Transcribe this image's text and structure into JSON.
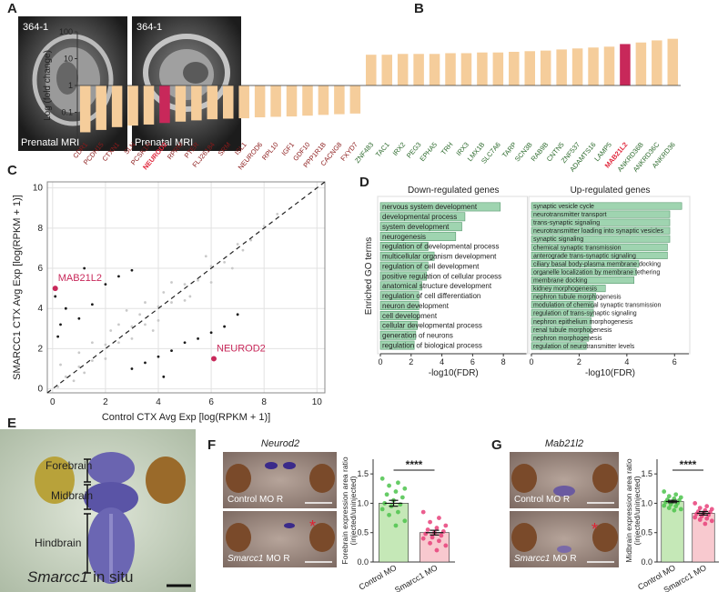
{
  "panel_labels": [
    "A",
    "B",
    "C",
    "D",
    "E",
    "F",
    "G"
  ],
  "panel_a": {
    "images": [
      {
        "tag": "364-1",
        "caption": "Prenatal MRI"
      },
      {
        "tag": "364-1",
        "caption": "Prenatal MRI"
      }
    ]
  },
  "panel_e": {
    "regions": [
      "Forebrain",
      "Midbrain",
      "Hindbrain"
    ],
    "gene": "Smarcc1",
    "caption": "in situ"
  },
  "panel_f": {
    "gene": "Neurod2",
    "control_label": "Control MO R",
    "knockdown_gene": "Smarcc1",
    "knockdown_label": "MO R",
    "marker": "*"
  },
  "panel_g": {
    "gene": "Mab21l2",
    "control_label": "Control MO R",
    "knockdown_gene": "Smarcc1",
    "knockdown_label": "MO R",
    "marker": "*"
  },
  "chart_data": [
    {
      "type": "bar",
      "ylabel": "Log (fold change)",
      "log_scale": true,
      "ylim": [
        0.01,
        100
      ],
      "yticks": [
        0.1,
        1,
        10,
        100
      ],
      "categories": [
        "CDR1",
        "PCDH15",
        "CTXN1",
        "SLN",
        "PCSK1N",
        "NEUROD2",
        "RPRM",
        "PTER",
        "FLJ26184",
        "SRM",
        "ISL1",
        "NEUROD6",
        "RPL10",
        "IGF1",
        "GDF10",
        "PPP1R1B",
        "CACNG8",
        "FXYD7",
        "ZNF483",
        "TAC1",
        "IRX2",
        "PEG3",
        "EPHA5",
        "TRH",
        "IRX3",
        "LMX1B",
        "SLC7A6",
        "TARP",
        "SCN3B",
        "RAB9B",
        "CNTN5",
        "ZNF537",
        "ADAMTS16",
        "LAMP5",
        "MAB21L2",
        "ANKRD36B",
        "ANKRD36C",
        "ANKRD36"
      ],
      "values": [
        0.018,
        0.022,
        0.028,
        0.032,
        0.035,
        0.04,
        0.045,
        0.05,
        0.055,
        0.058,
        0.06,
        0.065,
        0.068,
        0.07,
        0.075,
        0.08,
        0.085,
        0.09,
        14,
        14,
        15,
        15,
        15,
        16,
        16,
        17,
        17,
        18,
        19,
        20,
        22,
        24,
        26,
        28,
        35,
        40,
        48,
        55
      ],
      "color": "#f5cd9b",
      "highlight": [
        "NEUROD2",
        "MAB21L2"
      ],
      "highlight_color": "#c8285a",
      "down_label_color": "#8b1a1a",
      "up_label_color": "#2e6b2e",
      "highlight_label_color": "#e0263b"
    },
    {
      "type": "scatter",
      "xlabel": "Control CTX Avg Exp [log(RPKM + 1)]",
      "ylabel": "SMARCC1 CTX Avg Exp [log(RPKM + 1)]",
      "xlim": [
        -0.2,
        10.3
      ],
      "ylim": [
        -0.2,
        10.3
      ],
      "xticks": [
        0,
        2,
        4,
        6,
        8,
        10
      ],
      "yticks": [
        0,
        2,
        4,
        6,
        8,
        10
      ],
      "grid": true,
      "series": [
        {
          "color": "#c9c9c9",
          "x": [
            0.5,
            1,
            1.5,
            2,
            2.5,
            3,
            3.5,
            4,
            4.5,
            5,
            5.5,
            6,
            6.5,
            7,
            7.5,
            8,
            1,
            2,
            3,
            4,
            5,
            6,
            1.5,
            2.5,
            3.5,
            4.5,
            0.3,
            0.8,
            2.8,
            3.8,
            5.8,
            6.8,
            2.2,
            4.2,
            5.2,
            7.2,
            0.2,
            8.5,
            3.3,
            1.2
          ],
          "values": [
            0.6,
            1.1,
            1.4,
            2.2,
            2.3,
            3.1,
            3.2,
            4.1,
            4.3,
            5.2,
            5.4,
            6.1,
            6.3,
            7.2,
            7.4,
            8.1,
            1.8,
            1.5,
            2.5,
            3.4,
            4.4,
            5.3,
            2.3,
            3.2,
            4.3,
            5.3,
            1.2,
            0.4,
            3.9,
            2.9,
            6.6,
            6,
            2.9,
            4.8,
            4.6,
            6.9,
            0.1,
            8.7,
            3.7,
            0.8
          ]
        },
        {
          "color": "#1a1a1a",
          "x": [
            0.3,
            0.5,
            1,
            1.5,
            2,
            0.2,
            2.5,
            3,
            1.2,
            3,
            3.5,
            4,
            4.5,
            5,
            5.5,
            6,
            4.2,
            6.5,
            7,
            0.1
          ],
          "values": [
            3.2,
            4,
            3.5,
            4.2,
            5.2,
            2.6,
            5.6,
            5.9,
            6,
            1,
            1.3,
            1.6,
            1.9,
            2.3,
            2.5,
            2.8,
            0.6,
            3.1,
            3.7,
            4.6
          ]
        }
      ],
      "annotations": [
        {
          "text": "MAB21L2",
          "x": 0.1,
          "y": 5.0
        },
        {
          "text": "NEUROD2",
          "x": 6.1,
          "y": 1.5
        }
      ],
      "annotation_color": "#c8285a"
    },
    {
      "type": "hbar",
      "title": "Down-regulated genes",
      "xlabel": "-log10(FDR)",
      "ylabel": "Enriched GO terms",
      "xlim": [
        0,
        9.5
      ],
      "xticks": [
        0,
        2,
        4,
        6,
        8
      ],
      "color": "#9fd4b0",
      "categories": [
        "nervous system development",
        "developmental process",
        "system development",
        "neurogenesis",
        "regulation of developmental process",
        "multicellular organism development",
        "regulation of cell development",
        "positive regulation of cellular process",
        "anatomical structure development",
        "regulation of cell differentiation",
        "neuron development",
        "cell development",
        "cellular developmental process",
        "generation of neurons",
        "regulation of biological process"
      ],
      "values": [
        7.8,
        5.5,
        5.3,
        4.9,
        3.1,
        3.5,
        3.1,
        3.0,
        2.7,
        2.5,
        2.5,
        2.5,
        2.4,
        2.3,
        2.2
      ]
    },
    {
      "type": "hbar",
      "title": "Up-regulated genes",
      "xlabel": "-log10(FDR)",
      "xlim": [
        0,
        6.6
      ],
      "xticks": [
        0,
        2,
        4,
        6
      ],
      "color": "#9fd4b0",
      "categories": [
        "synaptic vesicle cycle",
        "neurotransmitter transport",
        "trans-synaptic signaling",
        "neurotransmitter loading into synaptic vesicles",
        "synaptic signaling",
        "chemical synaptic transmission",
        "anterograde trans-synaptic signaling",
        "ciliary basal body-plasma membrane docking",
        "organelle localization by membrane tethering",
        "membrane docking",
        "kidney morphogenesis",
        "nephron tubule morphogenesis",
        "modulation of chemical synaptic transmission",
        "regulation of trans-synaptic signaling",
        "nephron epithelium morphogenesis",
        "renal tubule morphogenesis",
        "nephron morphogenesis",
        "regulation of neurotransmitter levels"
      ],
      "values": [
        6.3,
        5.8,
        5.8,
        5.8,
        5.8,
        5.7,
        5.7,
        4.5,
        4.4,
        4.3,
        3.1,
        2.7,
        2.6,
        2.6,
        2.5,
        2.5,
        2.4,
        2.3
      ]
    },
    {
      "type": "dotbar",
      "ylabel": [
        "Forebrain expression area ratio",
        "(injected/uninjected)"
      ],
      "ylim": [
        0,
        1.75
      ],
      "yticks": [
        {
          "value": 0,
          "label": "0.0"
        },
        {
          "value": 0.5,
          "label": "0.5"
        },
        {
          "value": 1,
          "label": "1.0"
        },
        {
          "value": 1.5,
          "label": "1.5"
        }
      ],
      "categories": [
        "Control MO",
        "Smarcc1 MO"
      ],
      "values": [
        1.0,
        0.5
      ],
      "errors": [
        0.05,
        0.04
      ],
      "colors": [
        "#c5e8b7",
        "#f8c9cf"
      ],
      "point_colors": [
        "#4cc34c",
        "#e8417a"
      ],
      "points": [
        [
          1.42,
          1.35,
          1.3,
          1.25,
          1.2,
          1.15,
          1.1,
          1.05,
          1.0,
          0.98,
          0.95,
          0.9,
          0.85,
          0.8,
          0.7,
          0.62
        ],
        [
          0.85,
          0.75,
          0.68,
          0.62,
          0.58,
          0.55,
          0.52,
          0.5,
          0.48,
          0.45,
          0.42,
          0.4,
          0.36,
          0.32,
          0.28,
          0.2
        ]
      ],
      "significance": "****"
    },
    {
      "type": "dotbar",
      "ylabel": [
        "Midbrain expression area ratio",
        "(injected/uninjected)"
      ],
      "ylim": [
        0,
        1.75
      ],
      "yticks": [
        {
          "value": 0,
          "label": "0.0"
        },
        {
          "value": 0.5,
          "label": "0.5"
        },
        {
          "value": 1,
          "label": "1.0"
        },
        {
          "value": 1.5,
          "label": "1.5"
        }
      ],
      "categories": [
        "Control MO",
        "Smarcc1 MO"
      ],
      "values": [
        1.03,
        0.83
      ],
      "errors": [
        0.02,
        0.03
      ],
      "colors": [
        "#c5e8b7",
        "#f8c9cf"
      ],
      "point_colors": [
        "#4cc34c",
        "#e8417a"
      ],
      "points": [
        [
          1.2,
          1.15,
          1.12,
          1.1,
          1.08,
          1.06,
          1.05,
          1.03,
          1.02,
          1.0,
          0.98,
          0.96,
          0.95,
          0.92,
          0.9,
          0.88
        ],
        [
          1.0,
          0.95,
          0.92,
          0.9,
          0.88,
          0.86,
          0.85,
          0.83,
          0.82,
          0.8,
          0.78,
          0.76,
          0.74,
          0.72,
          0.7,
          0.65
        ]
      ],
      "significance": "****"
    }
  ]
}
